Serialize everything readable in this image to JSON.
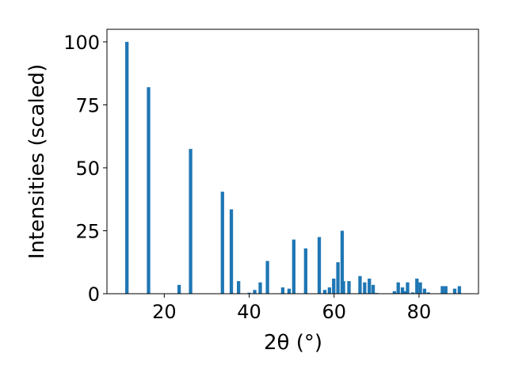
{
  "chart_data": {
    "type": "bar",
    "xlabel": "2θ (°)",
    "ylabel": "Intensities (scaled)",
    "xlim": [
      6.5,
      94
    ],
    "ylim": [
      0,
      105
    ],
    "xticks": [
      20,
      40,
      60,
      80
    ],
    "yticks": [
      0,
      25,
      50,
      75,
      100
    ],
    "bar_width_deg": 0.8,
    "bar_color": "#1f77b4",
    "grid": false,
    "legend": "none",
    "x": [
      11.2,
      16.3,
      23.5,
      26.2,
      33.7,
      35.8,
      37.5,
      40.0,
      41.3,
      42.6,
      44.3,
      47.9,
      49.4,
      50.5,
      53.3,
      56.5,
      57.8,
      58.9,
      59.9,
      60.9,
      61.9,
      62.2,
      63.5,
      66.1,
      67.2,
      68.3,
      69.2,
      70.0,
      74.2,
      75.1,
      76.1,
      76.6,
      77.3,
      78.5,
      79.5,
      80.3,
      81.3,
      82.2,
      85.5,
      86.3,
      88.4,
      89.5
    ],
    "values": [
      100,
      82,
      3.5,
      57.5,
      40.5,
      33.5,
      5,
      0.4,
      1.5,
      4.5,
      13,
      2.5,
      2,
      21.5,
      18,
      22.5,
      1.5,
      2.5,
      6,
      12.5,
      25,
      5,
      5,
      7,
      4.5,
      6,
      3.5,
      0.3,
      1,
      4.5,
      2.5,
      1,
      4.5,
      0.5,
      6,
      4.5,
      2,
      0.5,
      3,
      3,
      2,
      3
    ]
  }
}
